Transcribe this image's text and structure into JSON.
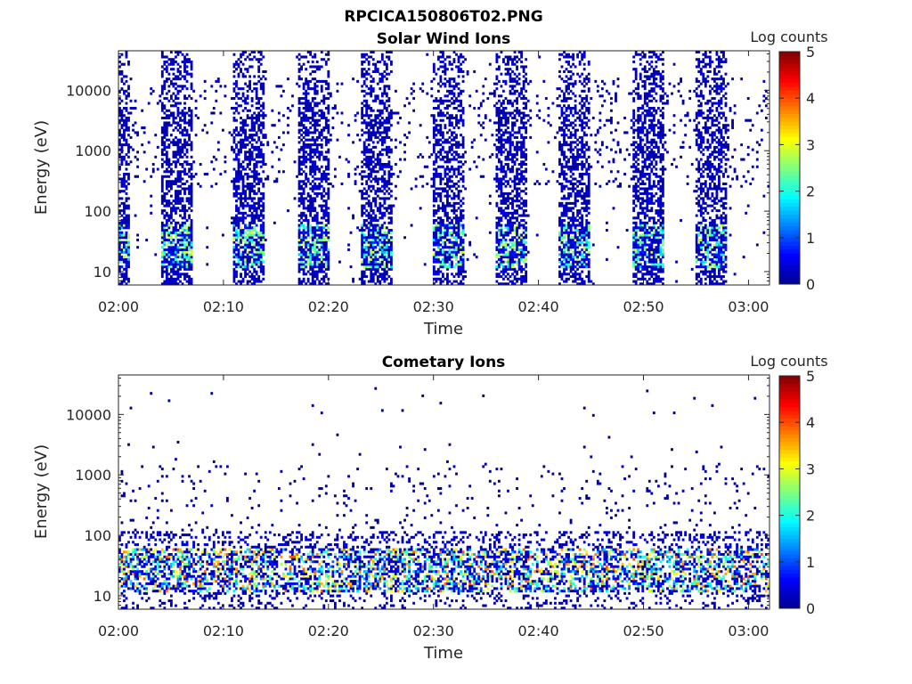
{
  "figure": {
    "title": "RPCICA150806T02.PNG"
  },
  "colors": {
    "cmap": [
      "#00008f",
      "#0000ff",
      "#0080ff",
      "#00ffff",
      "#80ff80",
      "#ffff00",
      "#ff8000",
      "#ff0000",
      "#800000"
    ]
  },
  "chart_data": [
    {
      "type": "heatmap",
      "title": "Solar Wind Ions",
      "xlabel": "Time",
      "ylabel": "Energy (eV)",
      "yscale": "log",
      "ylim": [
        6,
        45000
      ],
      "xlim": [
        "02:00",
        "03:02"
      ],
      "x_ticks": [
        "02:00",
        "02:10",
        "02:20",
        "02:30",
        "02:40",
        "02:50",
        "03:00"
      ],
      "y_ticks": [
        "10",
        "100",
        "1000",
        "10000"
      ],
      "colorbar": {
        "label": "Log counts",
        "range": [
          0,
          5
        ],
        "ticks": [
          "0",
          "1",
          "2",
          "3",
          "4",
          "5"
        ]
      },
      "scan_bursts": [
        "02:00-02:01",
        "02:04-02:07",
        "02:11-02:14",
        "02:17-02:20",
        "02:23-02:26",
        "02:30-02:33",
        "02:36-02:39",
        "02:42-02:45",
        "02:49-02:52",
        "02:55-02:58"
      ],
      "peak_energy_eV": 30,
      "peak_log_counts": 3
    },
    {
      "type": "heatmap",
      "title": "Cometary Ions",
      "xlabel": "Time",
      "ylabel": "Energy (eV)",
      "yscale": "log",
      "ylim": [
        6,
        45000
      ],
      "xlim": [
        "02:00",
        "03:02"
      ],
      "x_ticks": [
        "02:00",
        "02:10",
        "02:20",
        "02:30",
        "02:40",
        "02:50",
        "03:00"
      ],
      "y_ticks": [
        "10",
        "100",
        "1000",
        "10000"
      ],
      "colorbar": {
        "label": "Log counts",
        "range": [
          0,
          5
        ],
        "ticks": [
          "0",
          "1",
          "2",
          "3",
          "4",
          "5"
        ]
      },
      "band_energy_eV": [
        15,
        50
      ],
      "peak_log_counts": 4
    }
  ]
}
